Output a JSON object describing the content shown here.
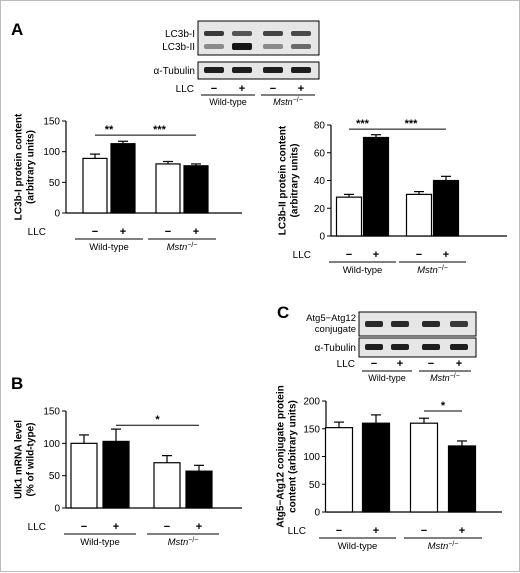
{
  "panel_labels": {
    "a": "A",
    "b": "B",
    "c": "C"
  },
  "blots": {
    "lc3": {
      "bands": [
        "LC3b-I",
        "LC3b-II"
      ],
      "loading": "α-Tubulin",
      "lanes": [
        "−",
        "+",
        "−",
        "+"
      ],
      "treatment": "LLC",
      "groups": [
        "Wild-type",
        "Mstn"
      ],
      "group_superscript": "−/−"
    },
    "atg": {
      "bands": [
        "Atg5−Atg12",
        "conjugate"
      ],
      "loading": "α-Tubulin",
      "lanes": [
        "−",
        "+",
        "−",
        "+"
      ],
      "treatment": "LLC",
      "groups": [
        "Wild-type",
        "Mstn"
      ],
      "group_superscript": "−/−"
    }
  },
  "chart_data": [
    {
      "id": "lc3b1",
      "type": "bar",
      "panel": "A",
      "categories": [
        "−",
        "+",
        "−",
        "+"
      ],
      "groups": [
        "Wild-type",
        "Mstn"
      ],
      "group_superscript": "−/−",
      "treatment": "LLC",
      "values": [
        89,
        113,
        80,
        77
      ],
      "errors": [
        7,
        4,
        4,
        3
      ],
      "colors": [
        "#ffffff",
        "#000000",
        "#ffffff",
        "#000000"
      ],
      "ylabel": "LC3b-I protein content",
      "ylabel2": "(arbitrary units)",
      "ylim": [
        0,
        150
      ],
      "yticks": [
        0,
        50,
        100,
        150
      ],
      "significance": [
        {
          "from": 0,
          "to": 1,
          "y": 127,
          "label": "**"
        },
        {
          "from": 1,
          "to": 3,
          "y": 127,
          "label": "***"
        }
      ]
    },
    {
      "id": "lc3b2",
      "type": "bar",
      "panel": "A",
      "categories": [
        "−",
        "+",
        "−",
        "+"
      ],
      "groups": [
        "Wild-type",
        "Mstn"
      ],
      "group_superscript": "−/−",
      "treatment": "LLC",
      "values": [
        28,
        71,
        30,
        40
      ],
      "errors": [
        2,
        2,
        2,
        3
      ],
      "colors": [
        "#ffffff",
        "#000000",
        "#ffffff",
        "#000000"
      ],
      "ylabel": "LC3b-II protein content",
      "ylabel2": "(arbitrary units)",
      "ylim": [
        0,
        80
      ],
      "yticks": [
        0,
        20,
        40,
        60,
        80
      ],
      "significance": [
        {
          "from": 0,
          "to": 1,
          "y": 77,
          "label": "***"
        },
        {
          "from": 1,
          "to": 3,
          "y": 77,
          "label": "***"
        }
      ]
    },
    {
      "id": "ulk1",
      "type": "bar",
      "panel": "B",
      "categories": [
        "−",
        "+",
        "−",
        "+"
      ],
      "groups": [
        "Wild-type",
        "Mstn"
      ],
      "group_superscript": "−/−",
      "treatment": "LLC",
      "values": [
        100,
        103,
        70,
        57
      ],
      "errors": [
        13,
        19,
        11,
        9
      ],
      "colors": [
        "#ffffff",
        "#000000",
        "#ffffff",
        "#000000"
      ],
      "ylabel": "Ulk1 mRNA level",
      "ylabel2": "(% of wild-type)",
      "ylim": [
        0,
        150
      ],
      "yticks": [
        0,
        50,
        100,
        150
      ],
      "significance": [
        {
          "from": 1,
          "to": 3,
          "y": 128,
          "label": "*"
        }
      ]
    },
    {
      "id": "atg5",
      "type": "bar",
      "panel": "C",
      "categories": [
        "−",
        "+",
        "−",
        "+"
      ],
      "groups": [
        "Wild-type",
        "Mstn"
      ],
      "group_superscript": "−/−",
      "treatment": "LLC",
      "values": [
        152,
        160,
        160,
        119
      ],
      "errors": [
        10,
        15,
        9,
        9
      ],
      "colors": [
        "#ffffff",
        "#000000",
        "#ffffff",
        "#000000"
      ],
      "ylabel": "Atg5−Atg12 conjugate protein",
      "ylabel2": "content (arbitrary units)",
      "ylim": [
        0,
        200
      ],
      "yticks": [
        0,
        50,
        100,
        150,
        200
      ],
      "significance": [
        {
          "from": 2,
          "to": 3,
          "y": 182,
          "label": "*"
        }
      ]
    }
  ]
}
